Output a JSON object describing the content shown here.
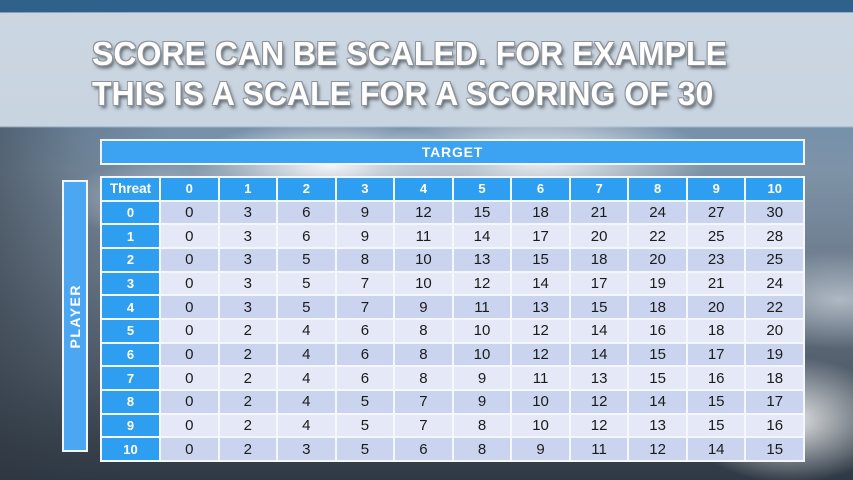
{
  "slide": {
    "title_lines": {
      "0": "SCORE CAN BE SCALED. FOR EXAMPLE",
      "1": "THIS IS A SCALE FOR A SCORING OF 30"
    }
  },
  "table": {
    "target_label": "TARGET",
    "player_label": "PLAYER",
    "corner_label": "Threat",
    "column_headers": [
      "0",
      "1",
      "2",
      "3",
      "4",
      "5",
      "6",
      "7",
      "8",
      "9",
      "10"
    ],
    "row_headers": [
      "0",
      "1",
      "2",
      "3",
      "4",
      "5",
      "6",
      "7",
      "8",
      "9",
      "10"
    ],
    "rows": [
      [
        0,
        3,
        6,
        9,
        12,
        15,
        18,
        21,
        24,
        27,
        30
      ],
      [
        0,
        3,
        6,
        9,
        11,
        14,
        17,
        20,
        22,
        25,
        28
      ],
      [
        0,
        3,
        5,
        8,
        10,
        13,
        15,
        18,
        20,
        23,
        25
      ],
      [
        0,
        3,
        5,
        7,
        10,
        12,
        14,
        17,
        19,
        21,
        24
      ],
      [
        0,
        3,
        5,
        7,
        9,
        11,
        13,
        15,
        18,
        20,
        22
      ],
      [
        0,
        2,
        4,
        6,
        8,
        10,
        12,
        14,
        16,
        18,
        20
      ],
      [
        0,
        2,
        4,
        6,
        8,
        10,
        12,
        14,
        15,
        17,
        19
      ],
      [
        0,
        2,
        4,
        6,
        8,
        9,
        11,
        13,
        15,
        16,
        18
      ],
      [
        0,
        2,
        4,
        5,
        7,
        9,
        10,
        12,
        14,
        15,
        17
      ],
      [
        0,
        2,
        4,
        5,
        7,
        8,
        10,
        12,
        13,
        15,
        16
      ],
      [
        0,
        2,
        3,
        5,
        6,
        8,
        9,
        11,
        12,
        14,
        15
      ]
    ]
  },
  "colors": {
    "header_blue": "#2D9EF0",
    "target_blue": "#3BA3F2",
    "player_blue": "#4BA7F2",
    "row_dark": "#CAD4EE",
    "row_light": "#E5E9F7",
    "cell_text": "#1B1B1B"
  }
}
